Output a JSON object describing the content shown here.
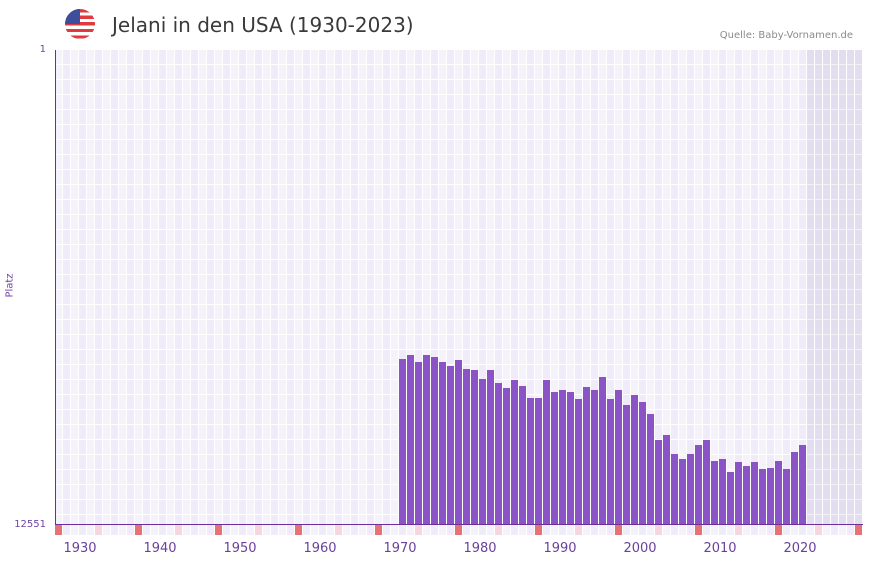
{
  "header": {
    "flag_icon": "us-flag-icon",
    "title": "Jelani in den USA (1930-2023)",
    "source": "Quelle: Baby-Vornamen.de"
  },
  "colors": {
    "bar": "#8b54c6",
    "axis": "#6a2f9f",
    "decade_marker": "#e57373",
    "half_decade_marker": "#f5d5de",
    "future_shade": "#e2def0"
  },
  "chart_data": {
    "type": "bar",
    "title": "Jelani in den USA (1930-2023)",
    "xlabel": "",
    "ylabel": "Platz",
    "y_inverted": true,
    "ylim": [
      12551,
      1
    ],
    "y_tick_labels": [
      "1",
      "12551"
    ],
    "x_tick_labels": [
      "1930",
      "1940",
      "1950",
      "1960",
      "1970",
      "1980",
      "1990",
      "2000",
      "2010",
      "2020"
    ],
    "x_range": [
      1929,
      2029
    ],
    "grid": true,
    "legend": null,
    "categories": [
      1972,
      1973,
      1974,
      1975,
      1976,
      1977,
      1978,
      1979,
      1980,
      1981,
      1982,
      1983,
      1984,
      1985,
      1986,
      1987,
      1988,
      1989,
      1990,
      1991,
      1992,
      1993,
      1994,
      1995,
      1996,
      1997,
      1998,
      1999,
      2000,
      2001,
      2002,
      2003,
      2004,
      2005,
      2006,
      2007,
      2008,
      2009,
      2010,
      2011,
      2012,
      2013,
      2014,
      2015,
      2016,
      2017,
      2018,
      2019,
      2020,
      2021,
      2022
    ],
    "values": [
      8166,
      8060,
      8245,
      8060,
      8113,
      8245,
      8351,
      8192,
      8430,
      8457,
      8695,
      8457,
      8800,
      8932,
      8721,
      8879,
      9196,
      9196,
      8721,
      9038,
      8985,
      9038,
      9223,
      8906,
      8985,
      8642,
      9223,
      8985,
      9381,
      9117,
      9302,
      9619,
      10306,
      10174,
      10676,
      10808,
      10676,
      10438,
      10306,
      10861,
      10808,
      11151,
      10887,
      10993,
      10887,
      11072,
      11046,
      10861,
      11072,
      10623,
      10438
    ]
  },
  "axis": {
    "y_top": "1",
    "y_bottom": "12551",
    "y_title": "Platz"
  }
}
